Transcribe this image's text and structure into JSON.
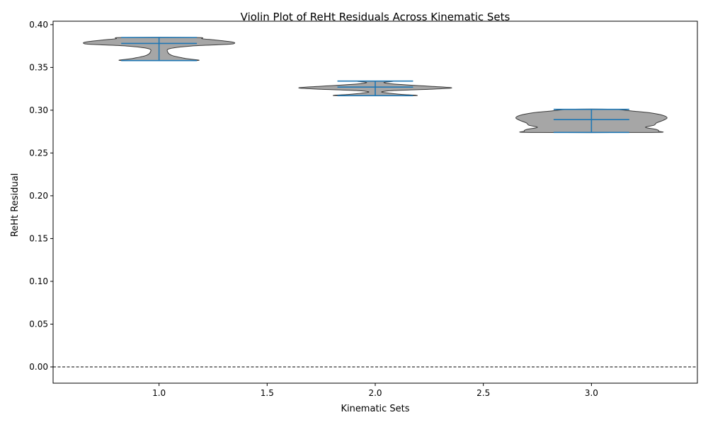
{
  "chart_data": {
    "type": "violin",
    "title": "Violin Plot of ReHt Residuals Across Kinematic Sets",
    "xlabel": "Kinematic Sets",
    "ylabel": "ReHt Residual",
    "xlim": [
      0.51,
      3.49
    ],
    "ylim": [
      -0.019,
      0.404
    ],
    "xticks": [
      1.0,
      1.5,
      2.0,
      2.5,
      3.0
    ],
    "xtick_labels": [
      "1.0",
      "1.5",
      "2.0",
      "2.5",
      "3.0"
    ],
    "yticks": [
      0.0,
      0.05,
      0.1,
      0.15,
      0.2,
      0.25,
      0.3,
      0.35,
      0.4
    ],
    "ytick_labels": [
      "0.00",
      "0.05",
      "0.10",
      "0.15",
      "0.20",
      "0.25",
      "0.30",
      "0.35",
      "0.40"
    ],
    "grid": false,
    "reference_line": {
      "y": 0.0,
      "style": "dashed",
      "color": "#000000"
    },
    "colors": {
      "violin_fill": "#a6a6a6",
      "violin_edge": "#3a3a3a",
      "stats_lines": "#1f77b4"
    },
    "violins": [
      {
        "position": 1.0,
        "min": 0.358,
        "max": 0.385,
        "median": 0.378,
        "density_profile": [
          [
            0.358,
            0.17
          ],
          [
            0.3605,
            0.12
          ],
          [
            0.364,
            0.06
          ],
          [
            0.368,
            0.04
          ],
          [
            0.372,
            0.05
          ],
          [
            0.375,
            0.15
          ],
          [
            0.377,
            0.32
          ],
          [
            0.3785,
            0.35
          ],
          [
            0.38,
            0.33
          ],
          [
            0.382,
            0.26
          ],
          [
            0.3835,
            0.2
          ],
          [
            0.385,
            0.17
          ]
        ]
      },
      {
        "position": 2.0,
        "min": 0.317,
        "max": 0.334,
        "median": 0.327,
        "density_profile": [
          [
            0.317,
            0.18
          ],
          [
            0.3185,
            0.12
          ],
          [
            0.32,
            0.06
          ],
          [
            0.3215,
            0.03
          ],
          [
            0.323,
            0.09
          ],
          [
            0.3245,
            0.25
          ],
          [
            0.3258,
            0.35
          ],
          [
            0.327,
            0.32
          ],
          [
            0.329,
            0.18
          ],
          [
            0.331,
            0.07
          ],
          [
            0.3325,
            0.04
          ],
          [
            0.334,
            0.08
          ]
        ]
      },
      {
        "position": 3.0,
        "min": 0.274,
        "max": 0.301,
        "median": 0.289,
        "density_profile": [
          [
            0.274,
            0.28
          ],
          [
            0.2755,
            0.31
          ],
          [
            0.2775,
            0.3
          ],
          [
            0.28,
            0.25
          ],
          [
            0.2825,
            0.29
          ],
          [
            0.285,
            0.3
          ],
          [
            0.288,
            0.33
          ],
          [
            0.291,
            0.35
          ],
          [
            0.294,
            0.33
          ],
          [
            0.297,
            0.27
          ],
          [
            0.299,
            0.19
          ],
          [
            0.301,
            0.1
          ]
        ]
      }
    ]
  }
}
